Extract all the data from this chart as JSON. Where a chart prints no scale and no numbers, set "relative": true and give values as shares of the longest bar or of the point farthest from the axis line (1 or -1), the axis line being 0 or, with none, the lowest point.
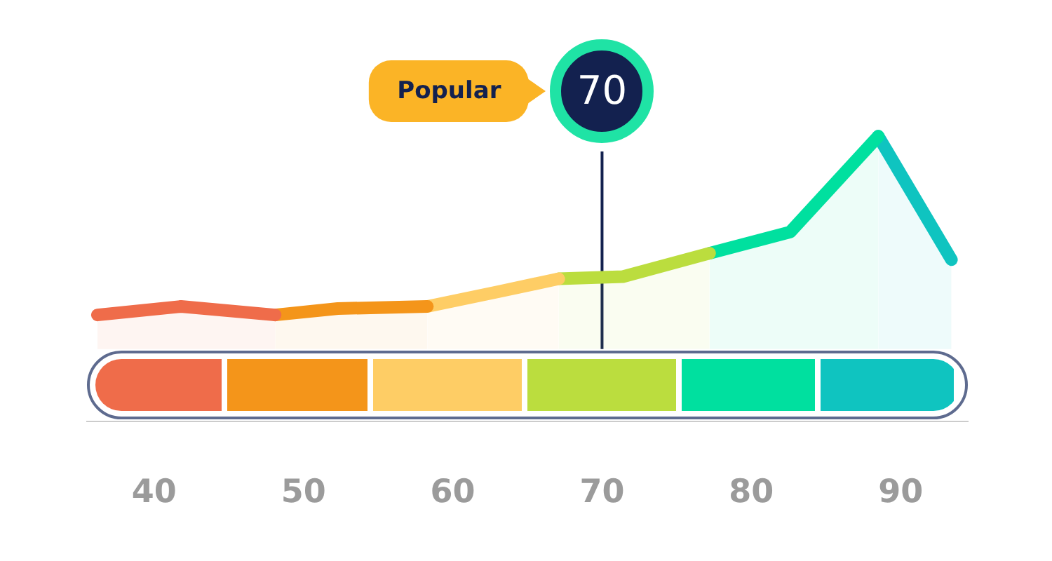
{
  "chart_data": {
    "type": "area",
    "relative": true,
    "series": [
      {
        "color": "#ef6c4a",
        "x": [
          36.2,
          41.8,
          48.1
        ],
        "values": [
          0.16,
          0.2,
          0.16
        ]
      },
      {
        "color": "#f4951a",
        "x": [
          48.1,
          52.3,
          58.3
        ],
        "values": [
          0.16,
          0.19,
          0.2
        ]
      },
      {
        "color": "#fecd65",
        "x": [
          58.3,
          63.1,
          67.1
        ],
        "values": [
          0.2,
          0.27,
          0.33
        ]
      },
      {
        "color": "#bbdd3e",
        "x": [
          67.1,
          71.4,
          77.2
        ],
        "values": [
          0.33,
          0.34,
          0.45
        ]
      },
      {
        "color": "#00e09f",
        "x": [
          77.2,
          82.6,
          88.5
        ],
        "values": [
          0.45,
          0.55,
          1
        ]
      },
      {
        "color": "#0fc4c0",
        "x": [
          88.5,
          93.4
        ],
        "values": [
          1,
          0.42
        ]
      }
    ],
    "xlim": [
      35.5,
      94.5
    ],
    "xticks": [
      40,
      50,
      60,
      70,
      80,
      90
    ],
    "grid": false,
    "legend": false,
    "line_style": "solid",
    "marker": "none",
    "ref_lines": [
      {
        "axis": "x",
        "value": 70,
        "label": "Popular",
        "color": "#13214f"
      }
    ],
    "annotations": [
      "70"
    ]
  }
}
